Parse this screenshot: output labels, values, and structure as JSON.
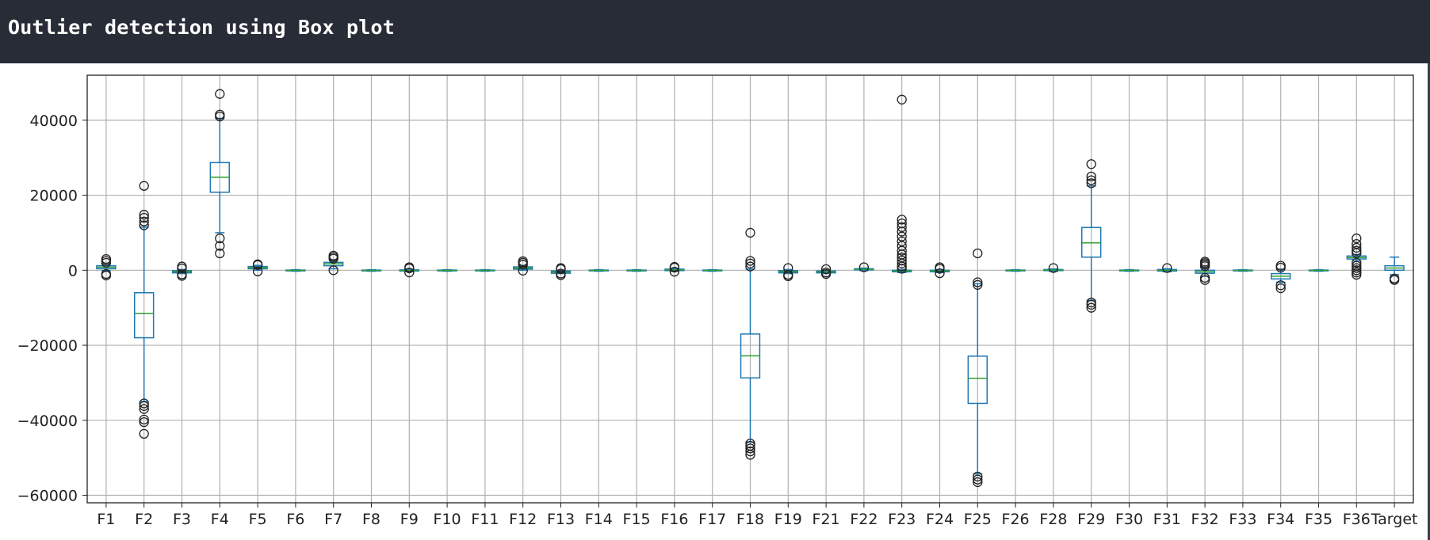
{
  "header": {
    "title": "Outlier detection using Box plot"
  },
  "colors": {
    "box": "#1f77b4",
    "median": "#2ca02c",
    "flier": "#222222",
    "grid": "#b0b0b0",
    "header_bg": "#282c37"
  },
  "chart_data": {
    "type": "box",
    "title": "",
    "xlabel": "",
    "ylabel": "",
    "ylim": [
      -62000,
      52000
    ],
    "yticks": [
      -60000,
      -40000,
      -20000,
      0,
      20000,
      40000
    ],
    "ytick_labels": [
      "−60000",
      "−40000",
      "−20000",
      "0",
      "20000",
      "40000"
    ],
    "grid": true,
    "categories": [
      "F1",
      "F2",
      "F3",
      "F4",
      "F5",
      "F6",
      "F7",
      "F8",
      "F9",
      "F10",
      "F11",
      "F12",
      "F13",
      "F14",
      "F15",
      "F16",
      "F17",
      "F18",
      "F19",
      "F21",
      "F22",
      "F23",
      "F24",
      "F25",
      "F26",
      "F28",
      "F29",
      "F30",
      "F31",
      "F32",
      "F33",
      "F34",
      "F35",
      "F36",
      "Target"
    ],
    "boxes": [
      {
        "q1": 400,
        "med": 800,
        "q3": 1200,
        "wlo": -100,
        "whi": 1800,
        "fliers": [
          -1400,
          -1000,
          2000,
          2500,
          3000
        ]
      },
      {
        "q1": -18000,
        "med": -11500,
        "q3": -6000,
        "wlo": -35000,
        "whi": 11500,
        "fliers": [
          -43600,
          -40500,
          -39800,
          -37000,
          -36200,
          -35500,
          12000,
          13000,
          14000,
          14800,
          22500
        ]
      },
      {
        "q1": -700,
        "med": -400,
        "q3": -100,
        "wlo": -900,
        "whi": 200,
        "fliers": [
          -1500,
          -1100,
          500,
          1000
        ]
      },
      {
        "q1": 20800,
        "med": 24800,
        "q3": 28700,
        "wlo": 10000,
        "whi": 40500,
        "fliers": [
          4500,
          6500,
          8500,
          41000,
          41500,
          47000
        ]
      },
      {
        "q1": 400,
        "med": 700,
        "q3": 1000,
        "wlo": 0,
        "whi": 1300,
        "fliers": [
          -300,
          1400,
          1600
        ]
      },
      {
        "q1": -150,
        "med": -50,
        "q3": 50,
        "wlo": -250,
        "whi": 150,
        "fliers": []
      },
      {
        "q1": 1200,
        "med": 1700,
        "q3": 2100,
        "wlo": 400,
        "whi": 2800,
        "fliers": [
          0,
          3100,
          3500,
          3900
        ]
      },
      {
        "q1": -150,
        "med": -50,
        "q3": 50,
        "wlo": -250,
        "whi": 150,
        "fliers": []
      },
      {
        "q1": -200,
        "med": -50,
        "q3": 100,
        "wlo": -350,
        "whi": 300,
        "fliers": [
          -600,
          500,
          800
        ]
      },
      {
        "q1": -150,
        "med": -50,
        "q3": 50,
        "wlo": -250,
        "whi": 150,
        "fliers": []
      },
      {
        "q1": -150,
        "med": -50,
        "q3": 50,
        "wlo": -250,
        "whi": 150,
        "fliers": []
      },
      {
        "q1": 300,
        "med": 600,
        "q3": 900,
        "wlo": 0,
        "whi": 1200,
        "fliers": [
          -100,
          1500,
          2000,
          2400
        ]
      },
      {
        "q1": -800,
        "med": -500,
        "q3": -200,
        "wlo": -900,
        "whi": 0,
        "fliers": [
          -1300,
          -900,
          300,
          600
        ]
      },
      {
        "q1": -150,
        "med": -50,
        "q3": 50,
        "wlo": -250,
        "whi": 150,
        "fliers": []
      },
      {
        "q1": -150,
        "med": -50,
        "q3": 50,
        "wlo": -250,
        "whi": 150,
        "fliers": []
      },
      {
        "q1": -100,
        "med": 100,
        "q3": 300,
        "wlo": -300,
        "whi": 500,
        "fliers": [
          -400,
          700,
          900
        ]
      },
      {
        "q1": -150,
        "med": -50,
        "q3": 50,
        "wlo": -250,
        "whi": 150,
        "fliers": []
      },
      {
        "q1": -28700,
        "med": -22800,
        "q3": -17000,
        "wlo": -45800,
        "whi": 300,
        "fliers": [
          -49200,
          -48300,
          -47500,
          -46800,
          -46200,
          1000,
          1800,
          2500,
          10000
        ]
      },
      {
        "q1": -700,
        "med": -400,
        "q3": -100,
        "wlo": -900,
        "whi": 200,
        "fliers": [
          -1600,
          -1200,
          600
        ]
      },
      {
        "q1": -700,
        "med": -450,
        "q3": -200,
        "wlo": -900,
        "whi": 0,
        "fliers": [
          -1000,
          -600,
          300
        ]
      },
      {
        "q1": 100,
        "med": 250,
        "q3": 400,
        "wlo": -100,
        "whi": 600,
        "fliers": [
          800
        ]
      },
      {
        "q1": -400,
        "med": -200,
        "q3": 0,
        "wlo": -600,
        "whi": 200,
        "fliers": [
          400,
          1000,
          1800,
          2600,
          3400,
          4200,
          5200,
          6500,
          7700,
          9000,
          10300,
          11500,
          12500,
          13500,
          45500
        ]
      },
      {
        "q1": -400,
        "med": -200,
        "q3": 0,
        "wlo": -600,
        "whi": 200,
        "fliers": [
          -800,
          400,
          800
        ]
      },
      {
        "q1": -35500,
        "med": -28800,
        "q3": -22900,
        "wlo": -54300,
        "whi": -3600,
        "fliers": [
          -56500,
          -55800,
          -55000,
          -3900,
          -3200,
          4500
        ]
      },
      {
        "q1": -150,
        "med": -50,
        "q3": 50,
        "wlo": -250,
        "whi": 150,
        "fliers": []
      },
      {
        "q1": -100,
        "med": 50,
        "q3": 200,
        "wlo": -300,
        "whi": 350,
        "fliers": [
          600
        ]
      },
      {
        "q1": 3500,
        "med": 7300,
        "q3": 11400,
        "wlo": -8000,
        "whi": 22500,
        "fliers": [
          -10000,
          -9200,
          -8600,
          23200,
          24000,
          25000,
          28300
        ]
      },
      {
        "q1": -150,
        "med": -50,
        "q3": 50,
        "wlo": -250,
        "whi": 150,
        "fliers": []
      },
      {
        "q1": -200,
        "med": 0,
        "q3": 200,
        "wlo": -400,
        "whi": 400,
        "fliers": [
          600
        ]
      },
      {
        "q1": -800,
        "med": -400,
        "q3": 0,
        "wlo": -1600,
        "whi": 800,
        "fliers": [
          -2600,
          -2000,
          1100,
          1500,
          1900,
          2300
        ]
      },
      {
        "q1": -150,
        "med": -50,
        "q3": 50,
        "wlo": -250,
        "whi": 150,
        "fliers": []
      },
      {
        "q1": -2300,
        "med": -1600,
        "q3": -900,
        "wlo": -3200,
        "whi": 300,
        "fliers": [
          -4800,
          -4000,
          700,
          1200
        ]
      },
      {
        "q1": -150,
        "med": -50,
        "q3": 50,
        "wlo": -250,
        "whi": 150,
        "fliers": []
      },
      {
        "q1": 3000,
        "med": 3400,
        "q3": 3800,
        "wlo": 2500,
        "whi": 4200,
        "fliers": [
          -1200,
          -600,
          0,
          600,
          1200,
          2000,
          4600,
          5200,
          6000,
          7000,
          8500
        ]
      },
      {
        "q1": 0,
        "med": 600,
        "q3": 1200,
        "wlo": -1200,
        "whi": 3500,
        "fliers": [
          -2600,
          -2200
        ]
      }
    ]
  }
}
